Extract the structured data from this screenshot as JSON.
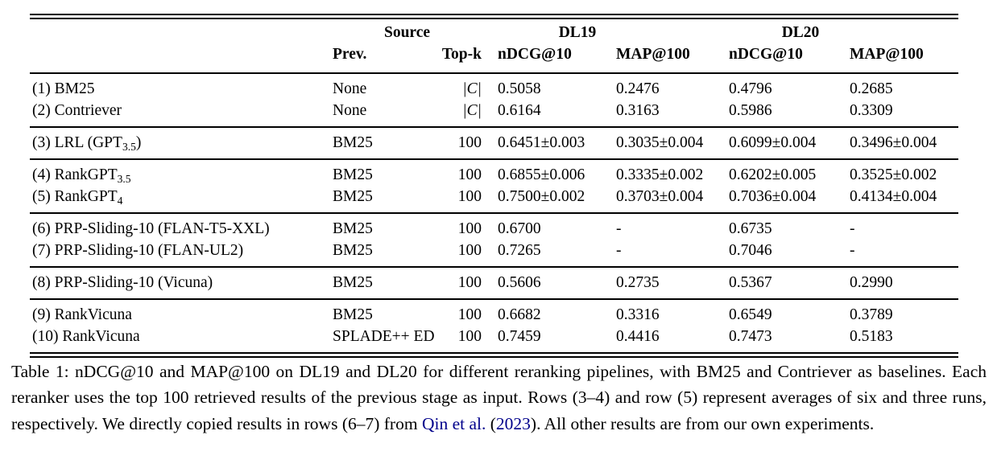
{
  "colors": {
    "background": "#ffffff",
    "text": "#000000",
    "rule": "#000000",
    "citation_link": "#00008B"
  },
  "table": {
    "header": {
      "source_group": "Source",
      "dl19_group": "DL19",
      "dl20_group": "DL20",
      "prev": "Prev.",
      "topk": "Top-k",
      "dl19_ndcg": "nDCG@10",
      "dl19_map": "MAP@100",
      "dl20_ndcg": "nDCG@10",
      "dl20_map": "MAP@100"
    },
    "rows": [
      {
        "method_pre": "(1) BM25",
        "method_sub": "",
        "method_post": "",
        "prev": "None",
        "topk": "|C|",
        "dl19_ndcg": "0.5058",
        "dl19_map": "0.2476",
        "dl20_ndcg": "0.4796",
        "dl20_map": "0.2685"
      },
      {
        "method_pre": "(2) Contriever",
        "method_sub": "",
        "method_post": "",
        "prev": "None",
        "topk": "|C|",
        "dl19_ndcg": "0.6164",
        "dl19_map": "0.3163",
        "dl20_ndcg": "0.5986",
        "dl20_map": "0.3309"
      },
      {
        "method_pre": "(3) LRL (GPT",
        "method_sub": "3.5",
        "method_post": ")",
        "prev": "BM25",
        "topk": "100",
        "dl19_ndcg": "0.6451±0.003",
        "dl19_map": "0.3035±0.004",
        "dl20_ndcg": "0.6099±0.004",
        "dl20_map": "0.3496±0.004"
      },
      {
        "method_pre": "(4) RankGPT",
        "method_sub": "3.5",
        "method_post": "",
        "prev": "BM25",
        "topk": "100",
        "dl19_ndcg": "0.6855±0.006",
        "dl19_map": "0.3335±0.002",
        "dl20_ndcg": "0.6202±0.005",
        "dl20_map": "0.3525±0.002"
      },
      {
        "method_pre": "(5) RankGPT",
        "method_sub": "4",
        "method_post": "",
        "prev": "BM25",
        "topk": "100",
        "dl19_ndcg": "0.7500±0.002",
        "dl19_map": "0.3703±0.004",
        "dl20_ndcg": "0.7036±0.004",
        "dl20_map": "0.4134±0.004"
      },
      {
        "method_pre": "(6) PRP-Sliding-10 (FLAN-T5-XXL)",
        "method_sub": "",
        "method_post": "",
        "prev": "BM25",
        "topk": "100",
        "dl19_ndcg": "0.6700",
        "dl19_map": "-",
        "dl20_ndcg": "0.6735",
        "dl20_map": "-"
      },
      {
        "method_pre": "(7) PRP-Sliding-10 (FLAN-UL2)",
        "method_sub": "",
        "method_post": "",
        "prev": "BM25",
        "topk": "100",
        "dl19_ndcg": "0.7265",
        "dl19_map": "-",
        "dl20_ndcg": "0.7046",
        "dl20_map": "-"
      },
      {
        "method_pre": "(8) PRP-Sliding-10 (Vicuna)",
        "method_sub": "",
        "method_post": "",
        "prev": "BM25",
        "topk": "100",
        "dl19_ndcg": "0.5606",
        "dl19_map": "0.2735",
        "dl20_ndcg": "0.5367",
        "dl20_map": "0.2990"
      },
      {
        "method_pre": "(9) RankVicuna",
        "method_sub": "",
        "method_post": "",
        "prev": "BM25",
        "topk": "100",
        "dl19_ndcg": "0.6682",
        "dl19_map": "0.3316",
        "dl20_ndcg": "0.6549",
        "dl20_map": "0.3789"
      },
      {
        "method_pre": "(10) RankVicuna",
        "method_sub": "",
        "method_post": "",
        "prev": "SPLADE++ ED",
        "topk": "100",
        "dl19_ndcg": "0.7459",
        "dl19_map": "0.4416",
        "dl20_ndcg": "0.7473",
        "dl20_map": "0.5183"
      }
    ]
  },
  "caption": {
    "seg1": "Table 1: nDCG@10 and MAP@100 on DL19 and DL20 for different reranking pipelines, with BM25 and Contriever as baselines. Each reranker uses the top 100 retrieved results of the previous stage as input. Rows (3–4) and row (5) represent averages of six and three runs, respectively. We directly copied results in rows (6–7) from ",
    "cite_name": "Qin et al.",
    "seg2": " (",
    "cite_year": "2023",
    "seg3": "). All other results are from our own experiments."
  }
}
